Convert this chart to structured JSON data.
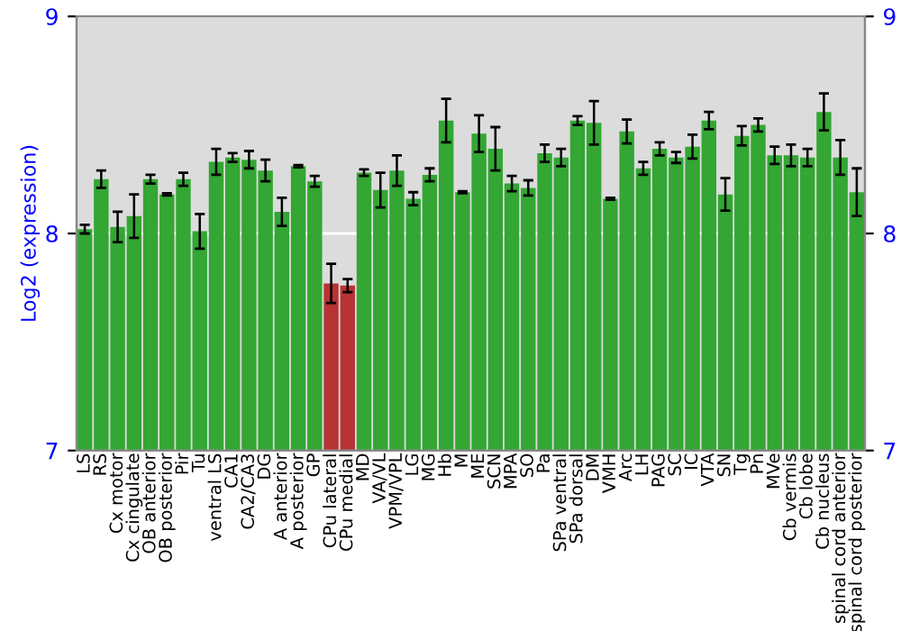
{
  "chart_data": {
    "type": "bar",
    "ylabel": "Log2 (expression)",
    "categories": [
      "LS",
      "RS",
      "Cx motor",
      "Cx cingulate",
      "OB anterior",
      "OB posterior",
      "Pir",
      "Tu",
      "ventral LS",
      "CA1",
      "CA2/CA3",
      "DG",
      "A anterior",
      "A posterior",
      "GP",
      "CPu lateral",
      "CPu medial",
      "MD",
      "VA/VL",
      "VPM/VPL",
      "LG",
      "MG",
      "Hb",
      "M",
      "ME",
      "SCN",
      "MPA",
      "SO",
      "Pa",
      "SPa ventral",
      "SPa dorsal",
      "DM",
      "VMH",
      "Arc",
      "LH",
      "PAG",
      "SC",
      "IC",
      "VTA",
      "SN",
      "Tg",
      "Pn",
      "MVe",
      "Cb vermis",
      "Cb lobe",
      "Cb nucleus",
      "spinal cord anterior",
      "spinal cord posterior"
    ],
    "values": [
      8.02,
      8.25,
      8.03,
      8.08,
      8.25,
      8.18,
      8.25,
      8.01,
      8.33,
      8.35,
      8.34,
      8.29,
      8.1,
      8.31,
      8.24,
      7.77,
      7.76,
      8.28,
      8.2,
      8.29,
      8.16,
      8.27,
      8.52,
      8.19,
      8.46,
      8.39,
      8.23,
      8.21,
      8.37,
      8.35,
      8.52,
      8.51,
      8.16,
      8.47,
      8.3,
      8.39,
      8.35,
      8.4,
      8.52,
      8.18,
      8.45,
      8.5,
      8.36,
      8.36,
      8.35,
      8.56,
      8.35,
      8.19
    ],
    "errors": [
      0.02,
      0.04,
      0.07,
      0.1,
      0.02,
      0.005,
      0.03,
      0.08,
      0.06,
      0.02,
      0.04,
      0.05,
      0.065,
      0.005,
      0.025,
      0.09,
      0.03,
      0.015,
      0.08,
      0.07,
      0.03,
      0.03,
      0.1,
      0.005,
      0.085,
      0.1,
      0.035,
      0.035,
      0.04,
      0.04,
      0.02,
      0.1,
      0.005,
      0.055,
      0.03,
      0.03,
      0.025,
      0.055,
      0.04,
      0.075,
      0.045,
      0.03,
      0.04,
      0.05,
      0.04,
      0.085,
      0.08,
      0.11
    ],
    "colors": [
      "#33a633",
      "#33a633",
      "#33a633",
      "#33a633",
      "#33a633",
      "#33a633",
      "#33a633",
      "#33a633",
      "#33a633",
      "#33a633",
      "#33a633",
      "#33a633",
      "#33a633",
      "#33a633",
      "#33a633",
      "#b83333",
      "#b83333",
      "#33a633",
      "#33a633",
      "#33a633",
      "#33a633",
      "#33a633",
      "#33a633",
      "#33a633",
      "#33a633",
      "#33a633",
      "#33a633",
      "#33a633",
      "#33a633",
      "#33a633",
      "#33a633",
      "#33a633",
      "#33a633",
      "#33a633",
      "#33a633",
      "#33a633",
      "#33a633",
      "#33a633",
      "#33a633",
      "#33a633",
      "#33a633",
      "#33a633",
      "#33a633",
      "#33a633",
      "#33a633",
      "#33a633",
      "#33a633",
      "#33a633"
    ],
    "ylim": [
      7,
      9
    ],
    "yticks": [
      7,
      8,
      9
    ],
    "y2lim": [
      7,
      9
    ],
    "y2ticks": [
      7,
      8,
      9
    ],
    "grid": "y"
  }
}
